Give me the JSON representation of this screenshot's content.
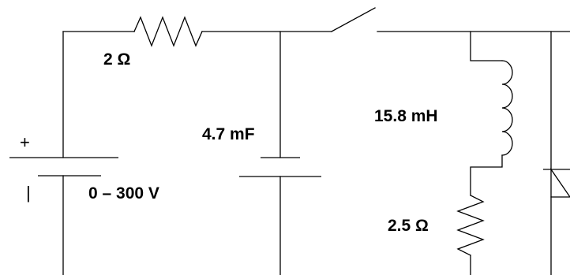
{
  "components": {
    "resistor_1": {
      "value": "2 Ω"
    },
    "capacitor": {
      "value": "4.7 mF"
    },
    "source": {
      "value": "0 – 300 V",
      "plus_sign": "+",
      "minus_sign": "|"
    },
    "inductor": {
      "value": "15.8 mH"
    },
    "resistor_2": {
      "value": "2.5 Ω"
    },
    "switch": {},
    "diode": {}
  },
  "colors": {
    "line": "#000000",
    "background": "#ffffff"
  }
}
